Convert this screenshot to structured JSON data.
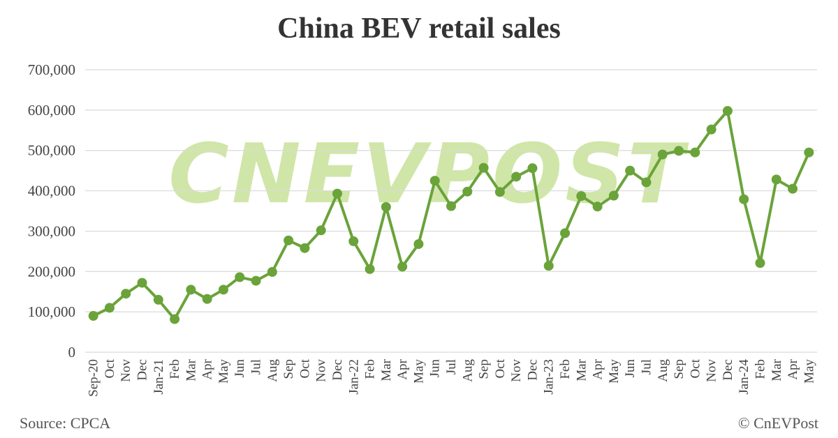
{
  "chart_data": {
    "type": "line",
    "title": "China BEV retail sales",
    "xlabel": "",
    "ylabel": "",
    "ylim": [
      0,
      700000
    ],
    "yticks": [
      0,
      100000,
      200000,
      300000,
      400000,
      500000,
      600000,
      700000
    ],
    "ytick_labels": [
      "0",
      "100,000",
      "200,000",
      "300,000",
      "400,000",
      "500,000",
      "600,000",
      "700,000"
    ],
    "grid": true,
    "legend": "none",
    "line_color": "#6aa33a",
    "grid_color": "#d9d9d9",
    "categories": [
      "Sep-20",
      "Oct",
      "Nov",
      "Dec",
      "Jan-21",
      "Feb",
      "Mar",
      "Apr",
      "May",
      "Jun",
      "Jul",
      "Aug",
      "Sep",
      "Oct",
      "Nov",
      "Dec",
      "Jan-22",
      "Feb",
      "Mar",
      "Apr",
      "May",
      "Jun",
      "Jul",
      "Aug",
      "Sep",
      "Oct",
      "Nov",
      "Dec",
      "Jan-23",
      "Feb",
      "Mar",
      "Apr",
      "May",
      "Jun",
      "Jul",
      "Aug",
      "Sep",
      "Oct",
      "Nov",
      "Dec",
      "Jan-24",
      "Feb",
      "Mar",
      "Apr",
      "May"
    ],
    "series": [
      {
        "values": [
          90000,
          110000,
          145000,
          172000,
          130000,
          82000,
          155000,
          132000,
          155000,
          186000,
          177000,
          199000,
          277000,
          258000,
          302000,
          393000,
          275000,
          206000,
          360000,
          212000,
          268000,
          425000,
          362000,
          398000,
          457000,
          397000,
          435000,
          456000,
          214000,
          295000,
          387000,
          361000,
          388000,
          450000,
          421000,
          490000,
          499000,
          495000,
          552000,
          598000,
          379000,
          221000,
          428000,
          405000,
          495000
        ]
      }
    ]
  },
  "watermark": "CNEVPOST",
  "footer": {
    "source": "Source: CPCA",
    "copyright": "© CnEVPost"
  }
}
